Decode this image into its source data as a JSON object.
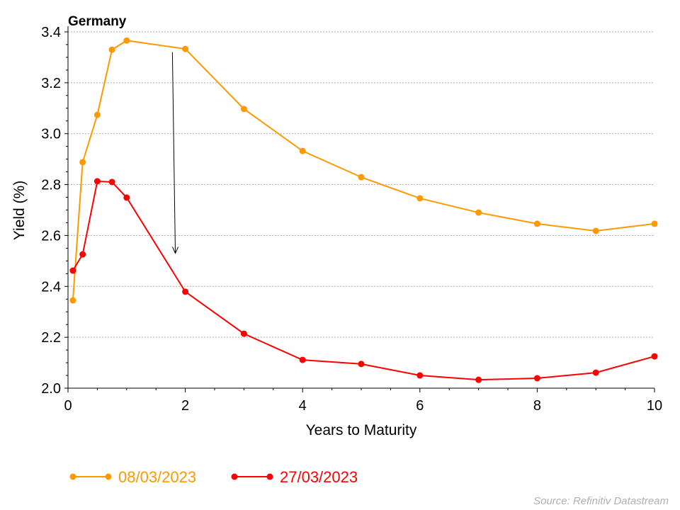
{
  "chart_data": {
    "type": "line",
    "title": "Germany",
    "xlabel": "Years to Maturity",
    "ylabel": "Yield (%)",
    "xlim": [
      0,
      10
    ],
    "ylim": [
      2.0,
      3.4
    ],
    "xticks": [
      "0",
      "2",
      "4",
      "6",
      "8",
      "10"
    ],
    "yticks": [
      "2.0",
      "2.2",
      "2.4",
      "2.6",
      "2.8",
      "3.0",
      "3.2",
      "3.4"
    ],
    "grid": "horizontal dotted",
    "legend_position": "bottom-left",
    "x": [
      0.083,
      0.25,
      0.5,
      0.75,
      1,
      2,
      3,
      4,
      5,
      6,
      7,
      8,
      9,
      10
    ],
    "series": [
      {
        "name": "08/03/2023",
        "color": "#FF9900",
        "values": [
          2.345,
          2.888,
          3.074,
          3.33,
          3.366,
          3.333,
          3.097,
          2.932,
          2.829,
          2.746,
          2.69,
          2.646,
          2.618,
          2.646
        ]
      },
      {
        "name": "27/03/2023",
        "color": "#FF0000",
        "values": [
          2.462,
          2.526,
          2.813,
          2.81,
          2.749,
          2.379,
          2.214,
          2.111,
          2.095,
          2.05,
          2.033,
          2.039,
          2.061,
          2.125
        ]
      }
    ],
    "annotations": [
      {
        "type": "arrow",
        "from": [
          1.78,
          3.32
        ],
        "to": [
          1.83,
          2.53
        ]
      }
    ],
    "source": "Source: Refinitiv Datastream"
  }
}
